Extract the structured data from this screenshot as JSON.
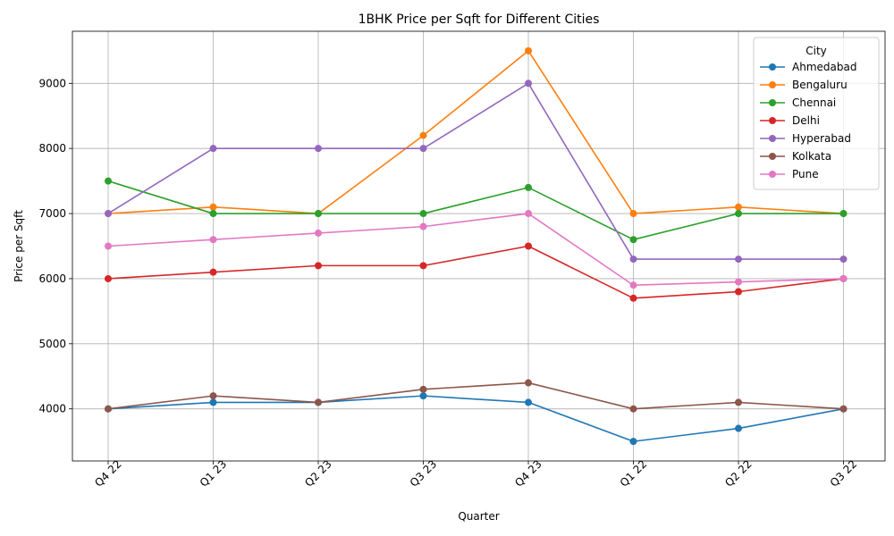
{
  "chart_data": {
    "type": "line",
    "title": "1BHK Price per Sqft for Different Cities",
    "xlabel": "Quarter",
    "ylabel": "Price per Sqft",
    "categories": [
      "Q4 22",
      "Q1 23",
      "Q2 23",
      "Q3 23",
      "Q4 23",
      "Q1 22",
      "Q2 22",
      "Q3 22"
    ],
    "ylim": [
      3200,
      9800
    ],
    "yticks": [
      4000,
      5000,
      6000,
      7000,
      8000,
      9000
    ],
    "grid": true,
    "legend": {
      "title": "City",
      "placement": "top-right"
    },
    "series": [
      {
        "name": "Ahmedabad",
        "color": "#1f77b4",
        "values": [
          4000,
          4100,
          4100,
          4200,
          4100,
          3500,
          3700,
          4000
        ]
      },
      {
        "name": "Bengaluru",
        "color": "#ff7f0e",
        "values": [
          7000,
          7100,
          7000,
          8200,
          9500,
          7000,
          7100,
          7000
        ]
      },
      {
        "name": "Chennai",
        "color": "#2ca02c",
        "values": [
          7500,
          7000,
          7000,
          7000,
          7400,
          6600,
          7000,
          7000
        ]
      },
      {
        "name": "Delhi",
        "color": "#d62728",
        "values": [
          6000,
          6100,
          6200,
          6200,
          6500,
          5700,
          5800,
          6000
        ]
      },
      {
        "name": "Hyperabad",
        "color": "#9467bd",
        "values": [
          7000,
          8000,
          8000,
          8000,
          9000,
          6300,
          6300,
          6300
        ]
      },
      {
        "name": "Kolkata",
        "color": "#8c564b",
        "values": [
          4000,
          4200,
          4100,
          4300,
          4400,
          4000,
          4100,
          4000
        ]
      },
      {
        "name": "Pune",
        "color": "#e377c2",
        "values": [
          6500,
          6600,
          6700,
          6800,
          7000,
          5900,
          5950,
          6000
        ]
      }
    ]
  }
}
